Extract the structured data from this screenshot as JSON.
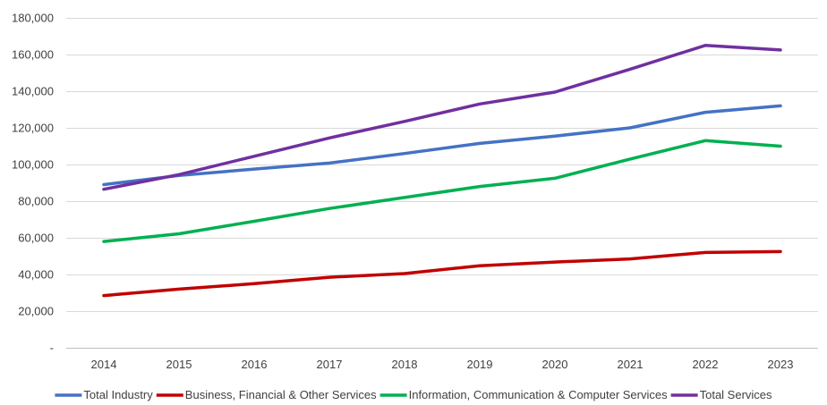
{
  "chart_data": {
    "type": "line",
    "title": "",
    "xlabel": "",
    "ylabel": "",
    "ylim": [
      0,
      180000
    ],
    "yticks": [
      0,
      20000,
      40000,
      60000,
      80000,
      100000,
      120000,
      140000,
      160000,
      180000
    ],
    "ytick_labels": [
      "-",
      "20,000",
      "40,000",
      "60,000",
      "80,000",
      "100,000",
      "120,000",
      "140,000",
      "160,000",
      "180,000"
    ],
    "categories": [
      "2014",
      "2015",
      "2016",
      "2017",
      "2018",
      "2019",
      "2020",
      "2021",
      "2022",
      "2023"
    ],
    "grid": true,
    "legend_position": "bottom",
    "series": [
      {
        "name": "Total Industry",
        "color": "#4472C4",
        "values": [
          89000,
          94000,
          97500,
          100800,
          106000,
          111500,
          115500,
          120000,
          128500,
          132000
        ]
      },
      {
        "name": "Business, Financial & Other Services",
        "color": "#C00000",
        "values": [
          28500,
          32000,
          35000,
          38500,
          40500,
          44800,
          46800,
          48500,
          52000,
          52500
        ]
      },
      {
        "name": "Information, Communication & Computer Services",
        "color": "#00B050",
        "values": [
          58000,
          62200,
          69000,
          76000,
          82000,
          88000,
          92500,
          103000,
          113000,
          110000
        ]
      },
      {
        "name": "Total Services",
        "color": "#7030A0",
        "values": [
          86500,
          94500,
          104500,
          114500,
          123500,
          133000,
          139500,
          152000,
          165000,
          162500
        ]
      }
    ]
  }
}
